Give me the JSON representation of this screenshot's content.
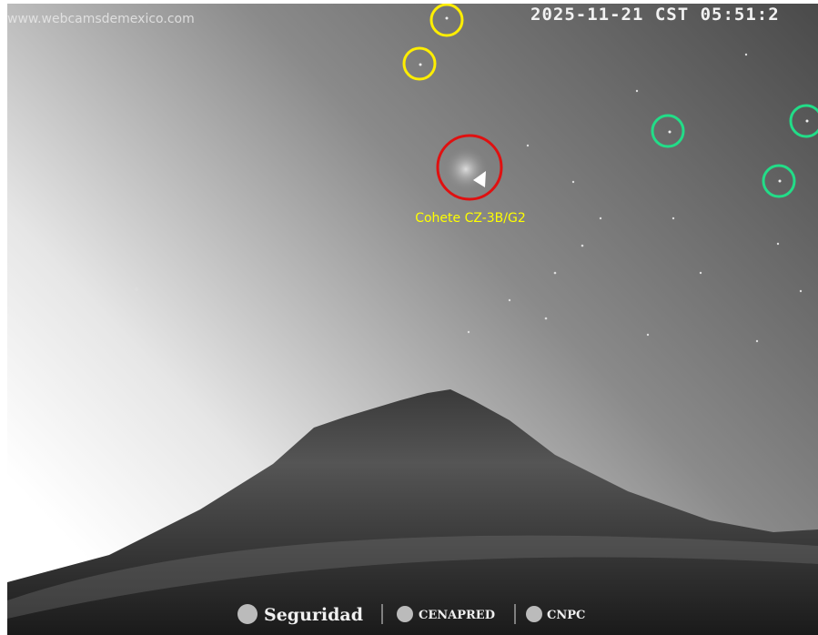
{
  "watermark": "www.webcamsdemexico.com",
  "timestamp": "2025-11-21 CST 05:51:2",
  "annotation": "Cohete CZ-3B/G2",
  "footer": {
    "logos": [
      "Seguridad",
      "CENAPRED",
      "CNPC"
    ]
  }
}
